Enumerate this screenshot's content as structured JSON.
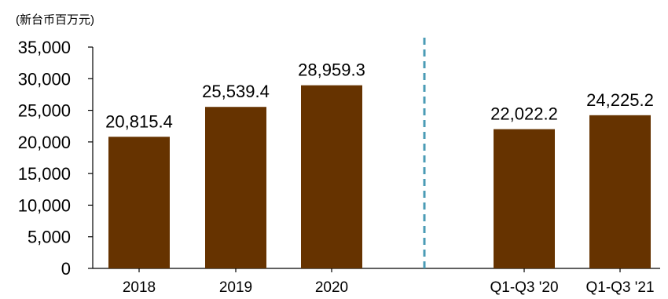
{
  "chart_data": {
    "type": "bar",
    "unit_label": "(新台币百万元)",
    "categories": [
      "2018",
      "2019",
      "2020",
      "Q1-Q3 '20",
      "Q1-Q3 '21"
    ],
    "values": [
      20815.4,
      25539.4,
      28959.3,
      22022.2,
      24225.2
    ],
    "value_labels": [
      "20,815.4",
      "25,539.4",
      "28,959.3",
      "22,022.2",
      "24,225.2"
    ],
    "y_ticks": [
      "0",
      "5,000",
      "10,000",
      "15,000",
      "20,000",
      "25,000",
      "30,000",
      "35,000"
    ],
    "ylim": [
      0,
      35000
    ],
    "grid": false,
    "legend": "none",
    "bar_color": "#663300",
    "divider_color": "#4A9BB5"
  }
}
